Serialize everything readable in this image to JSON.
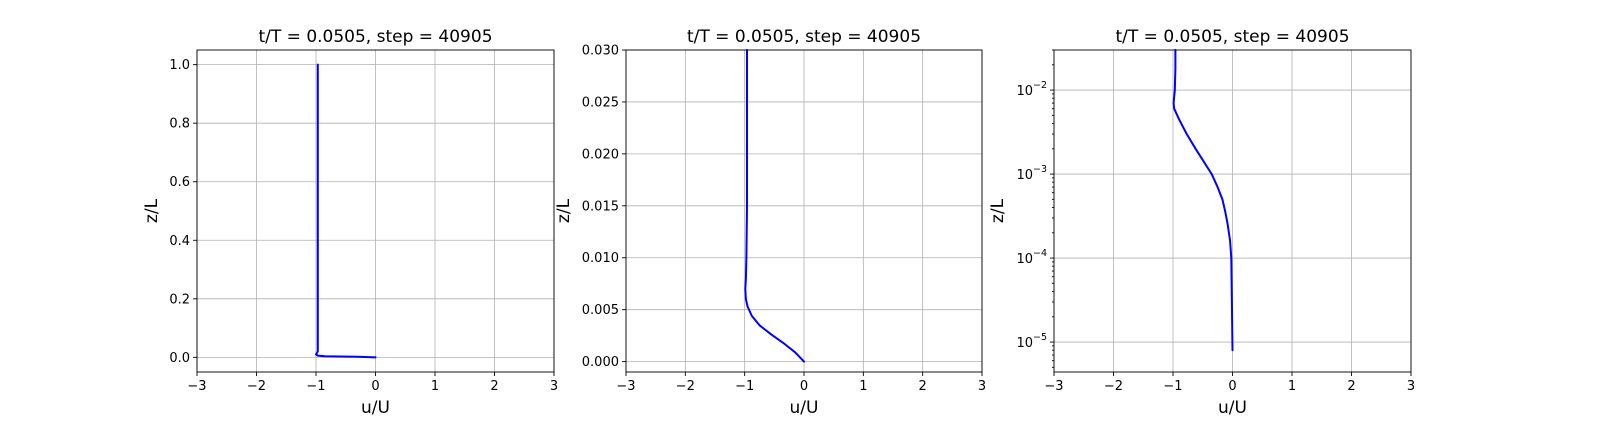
{
  "chart_data": [
    {
      "type": "line",
      "title": "t/T = 0.0505, step = 40905",
      "xlabel": "u/U",
      "ylabel": "z/L",
      "xlim": [
        -3,
        3
      ],
      "ylim": [
        -0.05,
        1.05
      ],
      "yscale": "linear",
      "grid": true,
      "xticks": [
        "−3",
        "−2",
        "−1",
        "0",
        "1",
        "2",
        "3"
      ],
      "yticks": [
        "0.0",
        "0.2",
        "0.4",
        "0.6",
        "0.8",
        "1.0"
      ],
      "series": [
        {
          "color": "#0000ff",
          "x": [
            0.0,
            -0.3,
            -0.6,
            -0.85,
            -0.97,
            -1.0,
            -0.97,
            -0.97,
            -0.97
          ],
          "y": [
            0.0,
            0.002,
            0.003,
            0.004,
            0.006,
            0.01,
            0.02,
            0.5,
            1.0
          ]
        }
      ]
    },
    {
      "type": "line",
      "title": "t/T = 0.0505, step = 40905",
      "xlabel": "u/U",
      "ylabel": "z/L",
      "xlim": [
        -3,
        3
      ],
      "ylim": [
        -0.001,
        0.03
      ],
      "yscale": "linear",
      "grid": true,
      "xticks": [
        "−3",
        "−2",
        "−1",
        "0",
        "1",
        "2",
        "3"
      ],
      "yticks": [
        "0.000",
        "0.005",
        "0.010",
        "0.015",
        "0.020",
        "0.025",
        "0.030"
      ],
      "series": [
        {
          "color": "#0000ff",
          "x": [
            0.0,
            -0.15,
            -0.35,
            -0.55,
            -0.75,
            -0.88,
            -0.95,
            -0.98,
            -0.99,
            -0.98,
            -0.97,
            -0.96,
            -0.96,
            -0.96
          ],
          "y": [
            0.0,
            0.0009,
            0.0018,
            0.0026,
            0.0035,
            0.0044,
            0.0053,
            0.006,
            0.007,
            0.008,
            0.01,
            0.015,
            0.02,
            0.03
          ]
        }
      ]
    },
    {
      "type": "line",
      "title": "t/T = 0.0505, step = 40905",
      "xlabel": "u/U",
      "ylabel": "z/L",
      "xlim": [
        -3,
        3
      ],
      "ylim": [
        4.4e-06,
        0.03
      ],
      "yscale": "log",
      "grid": true,
      "xticks": [
        "−3",
        "−2",
        "−1",
        "0",
        "1",
        "2",
        "3"
      ],
      "yticks": [
        {
          "base": "10",
          "exp": "−5",
          "value": 1e-05
        },
        {
          "base": "10",
          "exp": "−4",
          "value": 0.0001
        },
        {
          "base": "10",
          "exp": "−3",
          "value": 0.001
        },
        {
          "base": "10",
          "exp": "−2",
          "value": 0.01
        }
      ],
      "series": [
        {
          "color": "#0000ff",
          "x": [
            0.0,
            -0.01,
            -0.02,
            -0.04,
            -0.08,
            -0.12,
            -0.17,
            -0.25,
            -0.35,
            -0.48,
            -0.62,
            -0.77,
            -0.9,
            -0.98,
            -0.99,
            -0.97,
            -0.96,
            -0.96
          ],
          "y": [
            8e-06,
            3e-05,
            0.0001,
            0.00016,
            0.00025,
            0.00035,
            0.0005,
            0.0007,
            0.001,
            0.0014,
            0.002,
            0.003,
            0.0045,
            0.006,
            0.007,
            0.01,
            0.018,
            0.03
          ]
        }
      ]
    }
  ]
}
